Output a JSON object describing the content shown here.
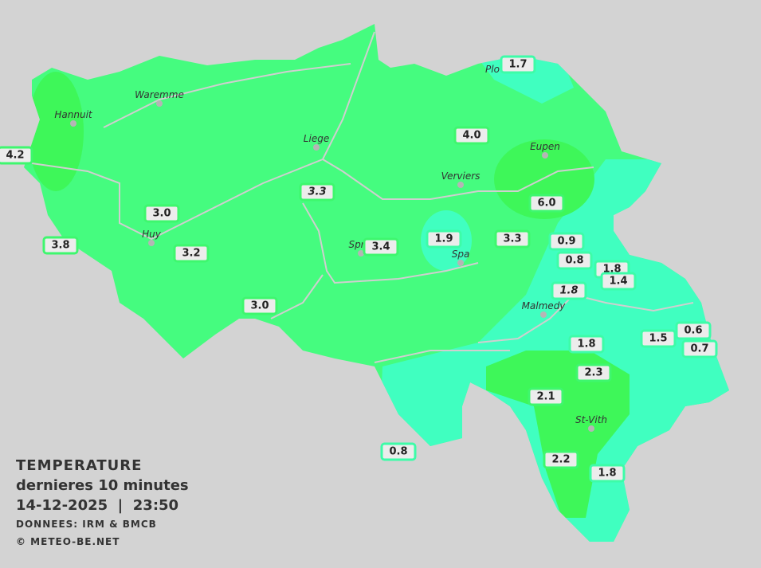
{
  "legend": {
    "title": "TEMPERATURE",
    "subtitle": "dernieres 10 minutes",
    "datetime": "14-12-2025  |  23:50",
    "source": "DONNEES: IRM & BMCB",
    "copyright": "© METEO-BE.NET"
  },
  "colors": {
    "background": "#d3d3d3",
    "mild": "#45fc7f",
    "warm": "#3ef759",
    "cool": "#40ffc0",
    "rivers": "#cfcfcf"
  },
  "cities": [
    "Waremme",
    "Hannuit",
    "Liege",
    "Verviers",
    "Eupen",
    "Huy",
    "Sprin",
    "Spa",
    "Malmedy",
    "St-Vith",
    "Plo"
  ],
  "stations": [
    {
      "value": "4.2"
    },
    {
      "value": "3.8"
    },
    {
      "value": "3.0"
    },
    {
      "value": "3.2"
    },
    {
      "value": "3.3",
      "italic": true
    },
    {
      "value": "3.0"
    },
    {
      "value": "3.4"
    },
    {
      "value": "1.9"
    },
    {
      "value": "3.3"
    },
    {
      "value": "4.0"
    },
    {
      "value": "1.7"
    },
    {
      "value": "6.0"
    },
    {
      "value": "0.9"
    },
    {
      "value": "0.8"
    },
    {
      "value": "1.8"
    },
    {
      "value": "1.4"
    },
    {
      "value": "1.8",
      "italic": true
    },
    {
      "value": "1.5"
    },
    {
      "value": "0.6"
    },
    {
      "value": "0.7"
    },
    {
      "value": "1.8"
    },
    {
      "value": "2.3"
    },
    {
      "value": "2.1"
    },
    {
      "value": "2.2"
    },
    {
      "value": "1.8"
    },
    {
      "value": "0.8"
    }
  ]
}
